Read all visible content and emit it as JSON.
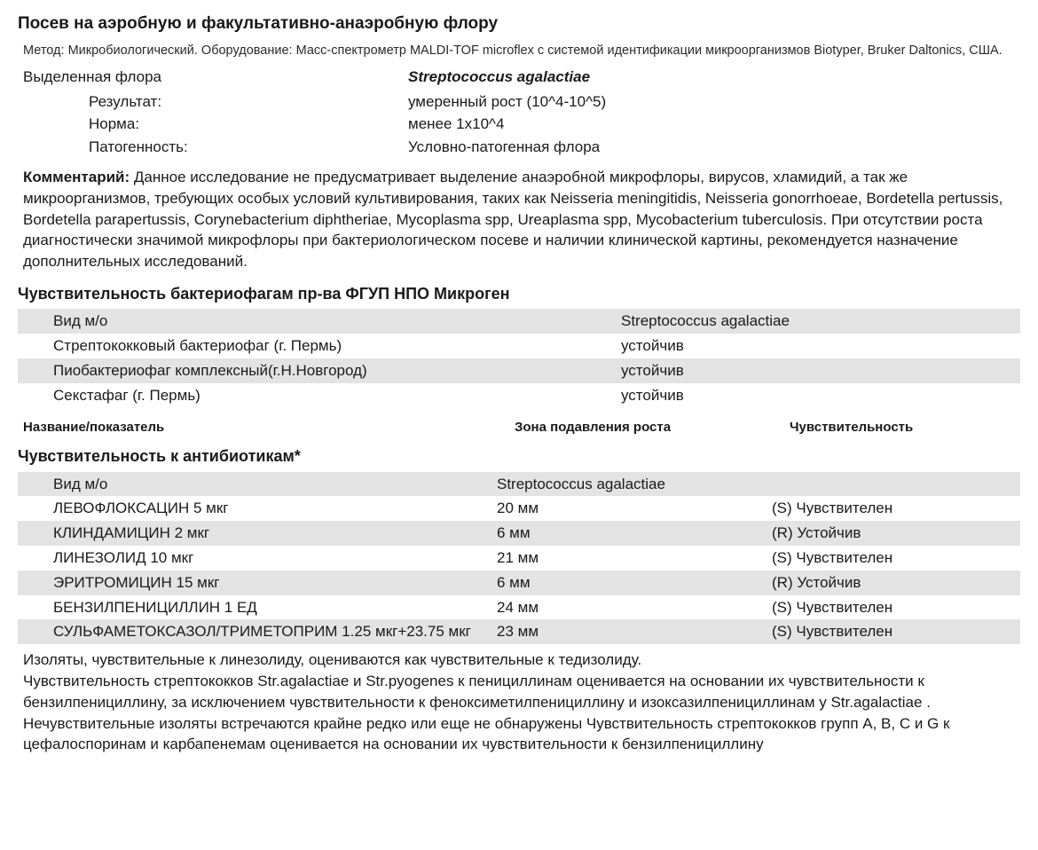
{
  "title": "Посев на аэробную и факультативно-анаэробную флору",
  "method": "Метод:  Микробиологический. Оборудование: Масс-спектрометр MALDI-TOF microflex с системой идентификации микроорганизмов Biotyper, Bruker Daltonics, США.",
  "flora": {
    "label": "Выделенная флора",
    "organism": "Streptococcus agalactiae",
    "props": [
      {
        "label": "Результат:",
        "value": "умеренный рост (10^4-10^5)"
      },
      {
        "label": "Норма:",
        "value": "менее 1x10^4"
      },
      {
        "label": "Патогенность:",
        "value": "Условно-патогенная флора"
      }
    ]
  },
  "comment": {
    "label": "Комментарий:",
    "text": " Данное исследование не предусматривает выделение анаэробной микрофлоры, вирусов, хламидий, а так же микроорганизмов, требующих особых условий культивирования, таких как Neisseria meningitidis, Neisseria gonorrhoeae, Bordetella pertussis, Bordetella parapertussis, Corynebacterium diphtheriae, Mycoplasma spp, Ureaplasma spp, Mycobacterium tuberculosis. При отсутствии роста диагностически значимой микрофлоры при бактериологическом посеве и наличии клинической картины, рекомендуется назначение дополнительных исследований."
  },
  "phages": {
    "title": "Чувствительность бактериофагам пр-ва ФГУП НПО Микроген",
    "rows": [
      {
        "name": "Вид м/о",
        "value": "Streptococcus agalactiae",
        "grey": true
      },
      {
        "name": "Стрептококковый бактериофаг (г. Пермь)",
        "value": "устойчив",
        "grey": false
      },
      {
        "name": "Пиобактериофаг комплексный(г.Н.Новгород)",
        "value": "устойчив",
        "grey": true
      },
      {
        "name": "Секстафаг (г. Пермь)",
        "value": "устойчив",
        "grey": false
      }
    ]
  },
  "columns_header": {
    "c1": "Название/показатель",
    "c2": "Зона подавления роста",
    "c3": "Чувствительность"
  },
  "antibiotics": {
    "title": "Чувствительность к антибиотикам*",
    "rows": [
      {
        "name": "Вид м/о",
        "zone": "Streptococcus agalactiae",
        "sens": "",
        "grey": true
      },
      {
        "name": "ЛЕВОФЛОКСАЦИН 5 мкг",
        "zone": "20 мм",
        "sens": "(S) Чувствителен",
        "grey": false
      },
      {
        "name": "КЛИНДАМИЦИН 2 мкг",
        "zone": "6 мм",
        "sens": "(R) Устойчив",
        "grey": true
      },
      {
        "name": "ЛИНЕЗОЛИД 10 мкг",
        "zone": "21 мм",
        "sens": "(S) Чувствителен",
        "grey": false
      },
      {
        "name": "ЭРИТРОМИЦИН 15 мкг",
        "zone": "6 мм",
        "sens": "(R) Устойчив",
        "grey": true
      },
      {
        "name": "БЕНЗИЛПЕНИЦИЛЛИН 1 ЕД",
        "zone": "24 мм",
        "sens": "(S) Чувствителен",
        "grey": false
      },
      {
        "name": "СУЛЬФАМЕТОКСАЗОЛ/ТРИМЕТОПРИМ 1.25 мкг+23.75 мкг",
        "zone": "23 мм",
        "sens": "(S) Чувствителен",
        "grey": true
      }
    ]
  },
  "footer": "Изоляты, чувствительные к линезолиду, оцениваются как чувствительные к тедизолиду.\nЧувствительность стрептококков  Str.agalactiae и Str.pyogenes к пенициллинам оценивается на основании их чувствительности к бензилпенициллину, за исключением чувствительности к феноксиметилпенициллину и изоксазилпенициллинам у Str.agalactiae . Нечувствительные изоляты встречаются крайне редко или еще не обнаружены Чувствительность стрептококков групп A, B, C и G к цефалоспоринам и карбапенемам оценивается на основании их чувствительности к бензилпенициллину"
}
